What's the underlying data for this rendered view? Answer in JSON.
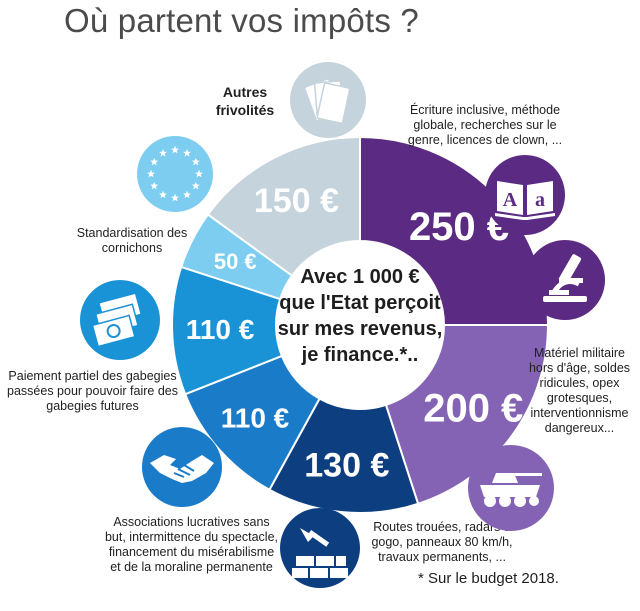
{
  "title": "Où partent vos impôts ?",
  "footnote": "* Sur le budget 2018.",
  "center_text": [
    "Avec 1 000 €",
    "que l'Etat perçoit",
    "sur mes revenus,",
    "je finance.*.."
  ],
  "colors": {
    "dark_purple": "#5b2a82",
    "light_purple": "#8463b5",
    "navy": "#0d3e80",
    "blue": "#1a7bc8",
    "mid_blue": "#1a93d6",
    "light_blue": "#7ccdf0",
    "grey": "#c5d3dc"
  },
  "chart_data": {
    "type": "pie",
    "title": "Où partent vos impôts ?",
    "unit": "€",
    "slices": [
      {
        "value": 250,
        "label": "250 €",
        "description": "Écriture inclusive, méthode globale, recherches sur le genre, licences de clown, ...",
        "color": "#5b2a82"
      },
      {
        "value": 200,
        "label": "200 €",
        "description": "Matériel militaire hors d'âge, soldes ridicules, opex grotesques, interventionnisme dangereux...",
        "color": "#8463b5"
      },
      {
        "value": 130,
        "label": "130 €",
        "description": "Routes trouées, radars à gogo, panneaux 80 km/h, travaux permanents, ...",
        "color": "#0d3e80"
      },
      {
        "value": 110,
        "label": "110 €",
        "description": "Associations lucratives sans but, intermittence du spectacle, financement du misérabilisme et de la moraline permanente",
        "color": "#1a7bc8"
      },
      {
        "value": 110,
        "label": "110 €",
        "description": "Paiement partiel des gabegies passées pour pouvoir faire des gabegies futures",
        "color": "#1a93d6"
      },
      {
        "value": 50,
        "label": "50 €",
        "description": "Standardisation des cornichons",
        "color": "#7ccdf0"
      },
      {
        "value": 150,
        "label": "150 €",
        "description": "Autres frivolités",
        "color": "#c5d3dc"
      }
    ]
  },
  "icons": [
    "cards-icon",
    "eu-stars-icon",
    "book-icon",
    "microscope-icon",
    "money-stack-icon",
    "tank-icon",
    "handshake-icon",
    "road-works-icon"
  ]
}
